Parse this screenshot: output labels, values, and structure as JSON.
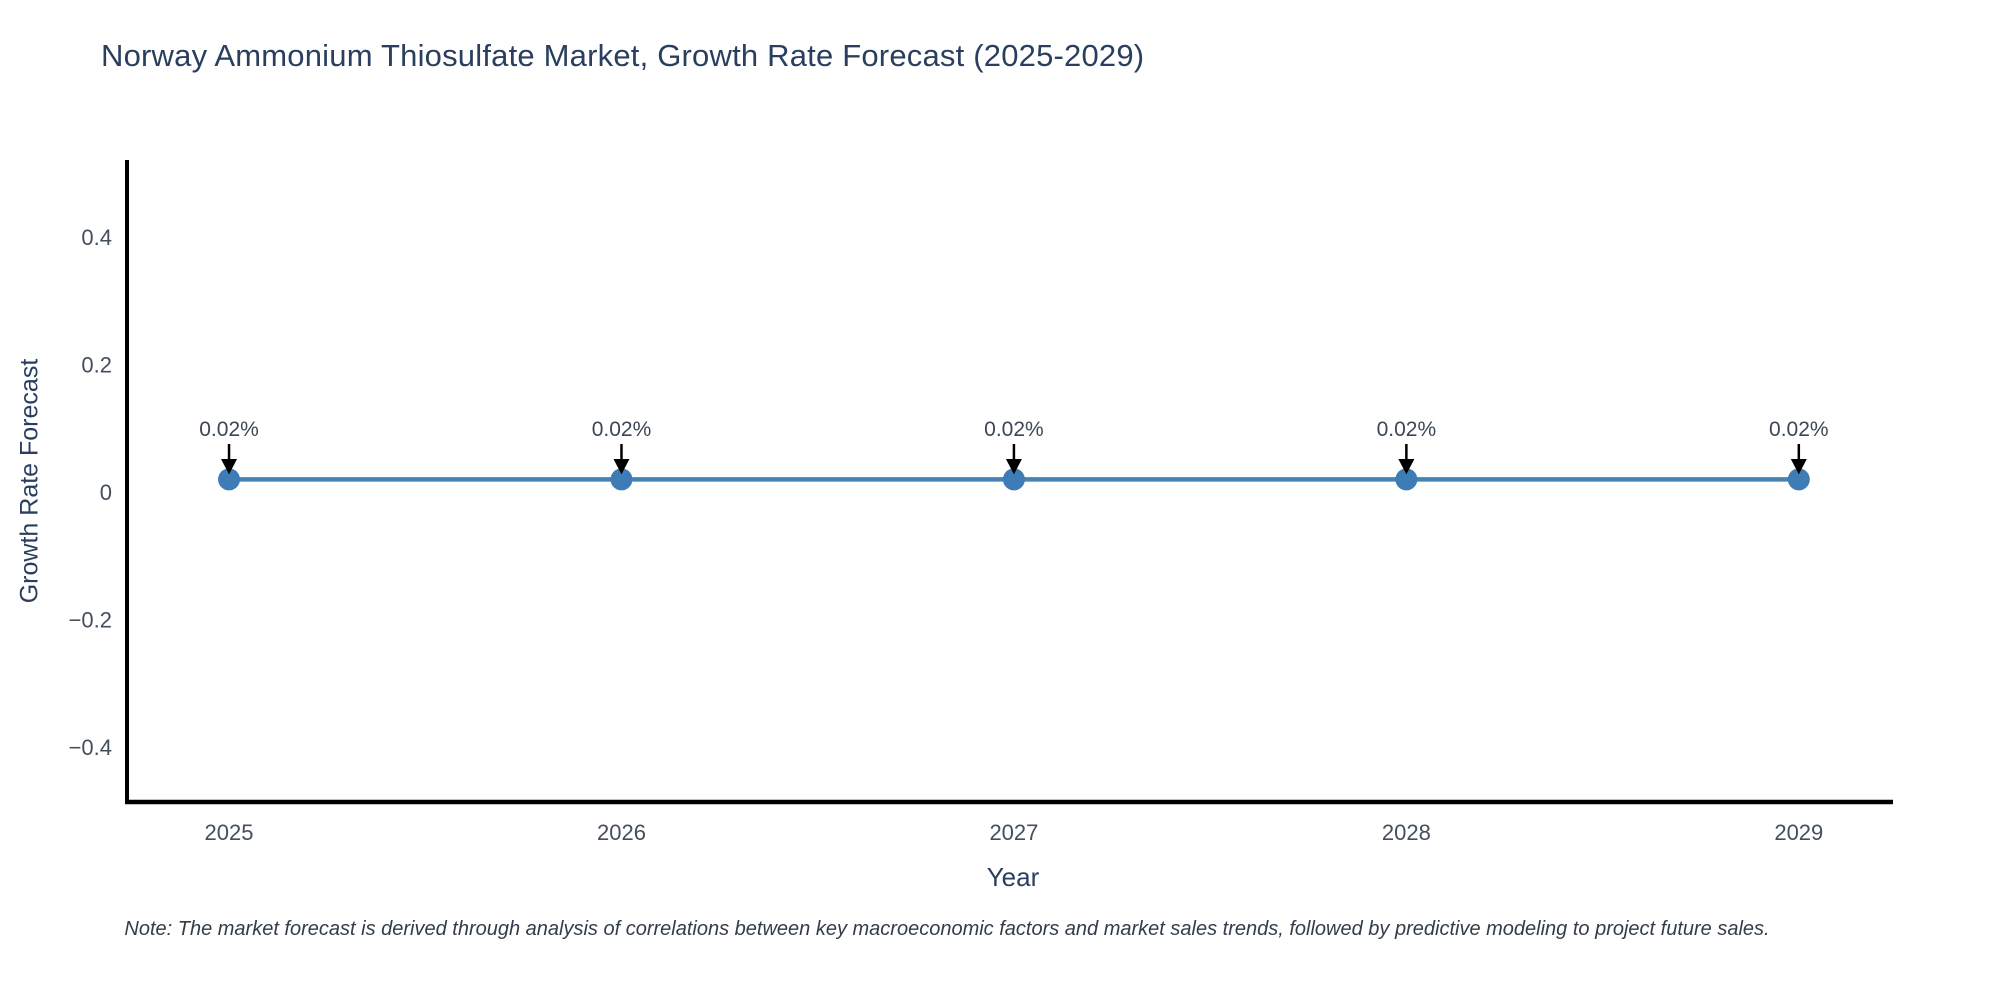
{
  "chart_data": {
    "type": "line",
    "title": "Norway Ammonium Thiosulfate Market, Growth Rate Forecast (2025-2029)",
    "xlabel": "Year",
    "ylabel": "Growth Rate Forecast",
    "note": "Note: The market forecast is derived through analysis of correlations between key macroeconomic factors and market sales trends, followed by predictive modeling to project future sales.",
    "x": [
      2025,
      2026,
      2027,
      2028,
      2029
    ],
    "series": [
      {
        "name": "Growth Rate Forecast",
        "values": [
          0.02,
          0.02,
          0.02,
          0.02,
          0.02
        ]
      }
    ],
    "point_labels": [
      "0.02%",
      "0.02%",
      "0.02%",
      "0.02%",
      "0.02%"
    ],
    "xticks": {
      "values": [
        2025,
        2026,
        2027,
        2028,
        2029
      ],
      "labels": [
        "2025",
        "2026",
        "2027",
        "2028",
        "2029"
      ]
    },
    "yticks": {
      "values": [
        -0.4,
        -0.2,
        0,
        0.2,
        0.4
      ],
      "labels": [
        "−0.4",
        "−0.2",
        "0",
        "0.2",
        "0.4"
      ]
    },
    "xlim": [
      2024.74,
      2029.24
    ],
    "ylim": [
      -0.486,
      0.521
    ],
    "grid": false,
    "legend": "none",
    "colors": {
      "line": "#4682b4",
      "marker": "#3e7cb6",
      "axis": "#000000",
      "annotation_arrow": "#000000",
      "title_text": "#2a3f5f",
      "tick_text": "#444f5b",
      "annotation_text": "#3b4754"
    }
  }
}
